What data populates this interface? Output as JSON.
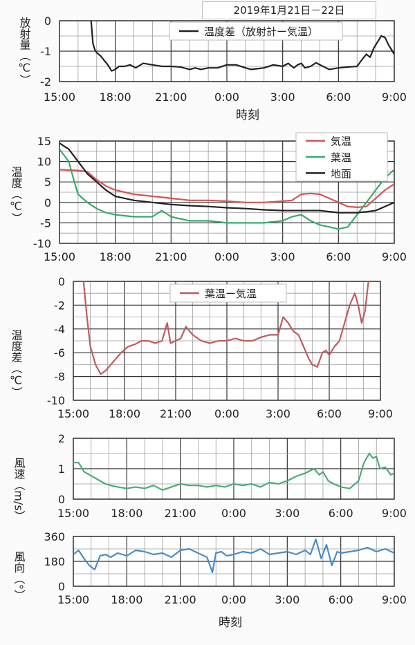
{
  "page_title": "2019年1月21日－22日",
  "chart_data": [
    {
      "type": "line",
      "ylabel": "放射量（℃）",
      "xlabel": "時刻",
      "ylim": [
        -2,
        0
      ],
      "yticks": [
        0,
        -1,
        -2
      ],
      "x_ticks": [
        "15:00",
        "18:00",
        "21:00",
        "0:00",
        "3:00",
        "6:00",
        "9:00"
      ],
      "x_range_hours": [
        15,
        33
      ],
      "legend": "top-center",
      "series": [
        {
          "name": "温度差（放射計ー気温）",
          "color": "#222222",
          "x": [
            16.7,
            16.8,
            16.9,
            17.0,
            17.2,
            17.4,
            17.6,
            17.8,
            18.0,
            18.2,
            18.5,
            18.8,
            19.1,
            19.5,
            20.0,
            20.5,
            21.0,
            21.5,
            22.0,
            22.3,
            22.6,
            23.0,
            23.5,
            24.0,
            24.5,
            25.0,
            25.3,
            25.6,
            26.0,
            26.5,
            27.0,
            27.3,
            27.6,
            27.8,
            28.0,
            28.2,
            28.5,
            28.8,
            29.0,
            29.5,
            30.0,
            30.5,
            31.0,
            31.3,
            31.5,
            31.7,
            31.9,
            32.1,
            32.3,
            32.5,
            32.7,
            32.9,
            33.0
          ],
          "values": [
            0,
            -0.75,
            -0.95,
            -1.05,
            -1.15,
            -1.3,
            -1.45,
            -1.65,
            -1.6,
            -1.5,
            -1.5,
            -1.45,
            -1.55,
            -1.4,
            -1.45,
            -1.5,
            -1.5,
            -1.52,
            -1.6,
            -1.55,
            -1.6,
            -1.55,
            -1.55,
            -1.45,
            -1.45,
            -1.55,
            -1.6,
            -1.58,
            -1.55,
            -1.45,
            -1.5,
            -1.4,
            -1.55,
            -1.45,
            -1.4,
            -1.55,
            -1.5,
            -1.38,
            -1.45,
            -1.6,
            -1.55,
            -1.52,
            -1.5,
            -1.25,
            -1.1,
            -1.2,
            -0.9,
            -0.7,
            -0.5,
            -0.55,
            -0.8,
            -1.0,
            -1.1
          ]
        }
      ]
    },
    {
      "type": "line",
      "ylabel": "温度（℃）",
      "ylim": [
        -10,
        15
      ],
      "yticks": [
        15,
        10,
        5,
        0,
        -5,
        -10
      ],
      "x_ticks": [
        "15:00",
        "18:00",
        "21:00",
        "0:00",
        "3:00",
        "6:00",
        "9:00"
      ],
      "x_range_hours": [
        15,
        33
      ],
      "legend": "top-right",
      "series": [
        {
          "name": "気温",
          "color": "#d9534f",
          "x": [
            15.0,
            16.0,
            16.5,
            17.0,
            17.5,
            18.0,
            19.0,
            20.0,
            21.0,
            22.0,
            23.0,
            24.0,
            25.0,
            26.0,
            27.0,
            27.5,
            28.0,
            28.5,
            29.0,
            29.5,
            30.0,
            30.5,
            31.0,
            31.5,
            32.0,
            32.5,
            33.0
          ],
          "values": [
            8.0,
            7.8,
            7.5,
            5.5,
            4.0,
            3.0,
            2.0,
            1.5,
            1.0,
            0.5,
            0.5,
            0.3,
            0.0,
            0.0,
            0.3,
            0.5,
            2.0,
            2.2,
            2.0,
            1.0,
            0.0,
            -1.0,
            -1.2,
            -1.0,
            1.0,
            3.0,
            4.5
          ]
        },
        {
          "name": "葉温",
          "color": "#3aaa6a",
          "x": [
            15.0,
            15.5,
            15.8,
            16.0,
            16.5,
            17.0,
            17.5,
            18.0,
            19.0,
            20.0,
            20.5,
            21.0,
            21.5,
            22.0,
            23.0,
            24.0,
            25.0,
            26.0,
            27.0,
            27.5,
            28.0,
            28.5,
            29.0,
            29.5,
            30.0,
            30.5,
            31.0,
            31.5,
            32.0,
            32.5,
            33.0
          ],
          "values": [
            13.0,
            10.0,
            5.0,
            2.0,
            0.0,
            -1.5,
            -2.5,
            -3.0,
            -3.5,
            -3.5,
            -2.0,
            -3.5,
            -4.0,
            -4.5,
            -4.5,
            -5.0,
            -5.0,
            -5.0,
            -4.5,
            -3.5,
            -3.0,
            -4.5,
            -5.5,
            -6.0,
            -6.5,
            -6.0,
            -3.0,
            0.0,
            3.0,
            6.0,
            8.0
          ]
        },
        {
          "name": "地面",
          "color": "#222222",
          "x": [
            15.0,
            15.5,
            16.0,
            16.5,
            17.0,
            17.5,
            18.0,
            19.0,
            20.0,
            21.0,
            22.0,
            23.0,
            24.0,
            25.0,
            26.0,
            27.0,
            28.0,
            29.0,
            30.0,
            30.5,
            31.0,
            31.5,
            32.0,
            32.5,
            33.0
          ],
          "values": [
            14.5,
            13.0,
            10.0,
            7.0,
            5.0,
            3.0,
            1.5,
            0.5,
            0.0,
            -0.5,
            -0.8,
            -1.0,
            -1.3,
            -1.5,
            -1.8,
            -2.0,
            -2.0,
            -2.0,
            -2.5,
            -2.5,
            -2.5,
            -2.3,
            -2.0,
            -1.0,
            0.0
          ]
        }
      ]
    },
    {
      "type": "line",
      "ylabel": "温度差（℃）",
      "ylim": [
        -10,
        0
      ],
      "yticks": [
        0,
        -2,
        -4,
        -6,
        -8,
        -10
      ],
      "x_ticks": [
        "15:00",
        "18:00",
        "21:00",
        "0:00",
        "3:00",
        "6:00",
        "9:00"
      ],
      "x_range_hours": [
        15,
        33
      ],
      "legend": "top-center",
      "series": [
        {
          "name": "葉温ー気温",
          "color": "#c25b5b",
          "x": [
            15.6,
            15.8,
            16.0,
            16.3,
            16.6,
            16.9,
            17.2,
            17.5,
            17.8,
            18.2,
            18.6,
            19.0,
            19.4,
            19.8,
            20.2,
            20.5,
            20.7,
            21.0,
            21.3,
            21.6,
            22.0,
            22.5,
            23.0,
            23.5,
            24.0,
            24.5,
            25.0,
            25.5,
            26.0,
            26.5,
            27.0,
            27.3,
            27.6,
            27.9,
            28.2,
            28.5,
            28.8,
            29.0,
            29.3,
            29.6,
            29.8,
            30.0,
            30.3,
            30.6,
            30.9,
            31.2,
            31.5,
            31.7,
            31.9,
            32.1,
            32.3
          ],
          "values": [
            0,
            -3.0,
            -5.5,
            -7.0,
            -7.8,
            -7.5,
            -7.0,
            -6.5,
            -6.0,
            -5.5,
            -5.3,
            -5.0,
            -5.0,
            -5.2,
            -5.0,
            -3.5,
            -5.2,
            -5.0,
            -4.8,
            -3.8,
            -4.5,
            -5.0,
            -5.2,
            -5.0,
            -5.0,
            -4.8,
            -5.0,
            -5.0,
            -4.7,
            -4.5,
            -4.5,
            -3.0,
            -3.5,
            -4.2,
            -4.5,
            -5.5,
            -6.5,
            -7.0,
            -7.2,
            -6.0,
            -5.8,
            -6.2,
            -5.5,
            -5.0,
            -3.5,
            -2.0,
            -1.0,
            -2.0,
            -3.5,
            -2.5,
            0
          ]
        }
      ]
    },
    {
      "type": "line",
      "ylabel": "風速（m/s）",
      "ylim": [
        0,
        2
      ],
      "yticks": [
        2,
        1,
        0
      ],
      "x_ticks": [
        "15:00",
        "18:00",
        "21:00",
        "0:00",
        "3:00",
        "6:00",
        "9:00"
      ],
      "x_range_hours": [
        15,
        33
      ],
      "series": [
        {
          "name": "",
          "color": "#4caa7a",
          "x": [
            15.0,
            15.3,
            15.6,
            15.9,
            16.2,
            16.5,
            16.8,
            17.1,
            17.5,
            18.0,
            18.5,
            19.0,
            19.5,
            20.0,
            20.5,
            21.0,
            21.5,
            22.0,
            22.5,
            23.0,
            23.5,
            24.0,
            24.5,
            25.0,
            25.5,
            26.0,
            26.5,
            27.0,
            27.5,
            28.0,
            28.5,
            28.8,
            29.0,
            29.3,
            29.6,
            30.0,
            30.5,
            31.0,
            31.3,
            31.6,
            31.8,
            32.0,
            32.2,
            32.5,
            32.8,
            33.0
          ],
          "values": [
            1.2,
            1.2,
            0.9,
            0.8,
            0.7,
            0.6,
            0.5,
            0.45,
            0.4,
            0.35,
            0.4,
            0.35,
            0.45,
            0.3,
            0.4,
            0.5,
            0.45,
            0.45,
            0.4,
            0.45,
            0.4,
            0.5,
            0.45,
            0.5,
            0.4,
            0.55,
            0.5,
            0.6,
            0.75,
            0.85,
            1.0,
            0.8,
            0.9,
            0.6,
            0.5,
            0.4,
            0.35,
            0.6,
            1.2,
            1.5,
            1.35,
            1.4,
            1.0,
            1.05,
            0.8,
            0.85
          ]
        }
      ]
    },
    {
      "type": "line",
      "ylabel": "風向（°）",
      "xlabel": "時刻",
      "ylim": [
        0,
        360
      ],
      "yticks": [
        360,
        180,
        0
      ],
      "x_ticks": [
        "15:00",
        "18:00",
        "21:00",
        "0:00",
        "3:00",
        "6:00",
        "9:00"
      ],
      "x_range_hours": [
        15,
        33
      ],
      "series": [
        {
          "name": "",
          "color": "#4a8cc8",
          "x": [
            15.0,
            15.3,
            15.6,
            15.9,
            16.2,
            16.5,
            16.8,
            17.1,
            17.5,
            18.0,
            18.5,
            19.0,
            19.5,
            20.0,
            20.5,
            21.0,
            21.5,
            22.0,
            22.5,
            22.8,
            23.0,
            23.3,
            23.6,
            24.0,
            24.5,
            25.0,
            25.5,
            26.0,
            26.5,
            27.0,
            27.5,
            28.0,
            28.3,
            28.6,
            28.9,
            29.2,
            29.5,
            29.8,
            30.0,
            30.5,
            31.0,
            31.5,
            32.0,
            32.5,
            33.0
          ],
          "values": [
            230,
            260,
            200,
            150,
            120,
            220,
            230,
            210,
            240,
            220,
            260,
            250,
            230,
            240,
            210,
            260,
            270,
            240,
            210,
            100,
            240,
            250,
            220,
            230,
            250,
            240,
            270,
            230,
            240,
            250,
            230,
            260,
            230,
            340,
            200,
            300,
            150,
            250,
            240,
            250,
            260,
            280,
            250,
            270,
            240
          ]
        }
      ]
    }
  ]
}
